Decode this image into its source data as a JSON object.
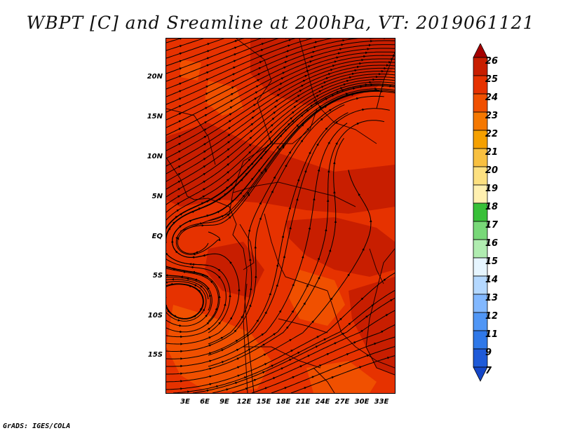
{
  "title": "WBPT [C] and Sreamline at 200hPa, VT: 2019061121",
  "credit": "GrADS: IGES/COLA",
  "lat_labels": [
    "20N",
    "15N",
    "10N",
    "5N",
    "EQ",
    "5S",
    "10S",
    "15S"
  ],
  "lon_labels": [
    "3E",
    "6E",
    "9E",
    "12E",
    "15E",
    "18E",
    "21E",
    "24E",
    "27E",
    "30E",
    "33E"
  ],
  "colorbar": {
    "labels": [
      "26",
      "25",
      "24",
      "23",
      "22",
      "21",
      "20",
      "19",
      "18",
      "17",
      "16",
      "15",
      "14",
      "13",
      "12",
      "11",
      "9",
      "7"
    ],
    "colors": [
      "#a50000",
      "#c81e00",
      "#e63200",
      "#f05000",
      "#f57800",
      "#f5a000",
      "#f8c040",
      "#fce080",
      "#fff0b0",
      "#38c038",
      "#78d878",
      "#b0ecb0",
      "#e6f5ff",
      "#b4d8ff",
      "#82b8ff",
      "#5096f5",
      "#2f78e8",
      "#1e5ad8",
      "#1446c8"
    ]
  },
  "chart_data": {
    "type": "heatmap",
    "variable": "WBPT [C]",
    "level": "200hPa",
    "valid_time": "2019061121",
    "lon_range": [
      0,
      35
    ],
    "lat_range": [
      -20,
      25
    ],
    "value_range_shown": [
      23,
      25
    ],
    "dominant_value": 24,
    "overlay": "streamlines"
  }
}
